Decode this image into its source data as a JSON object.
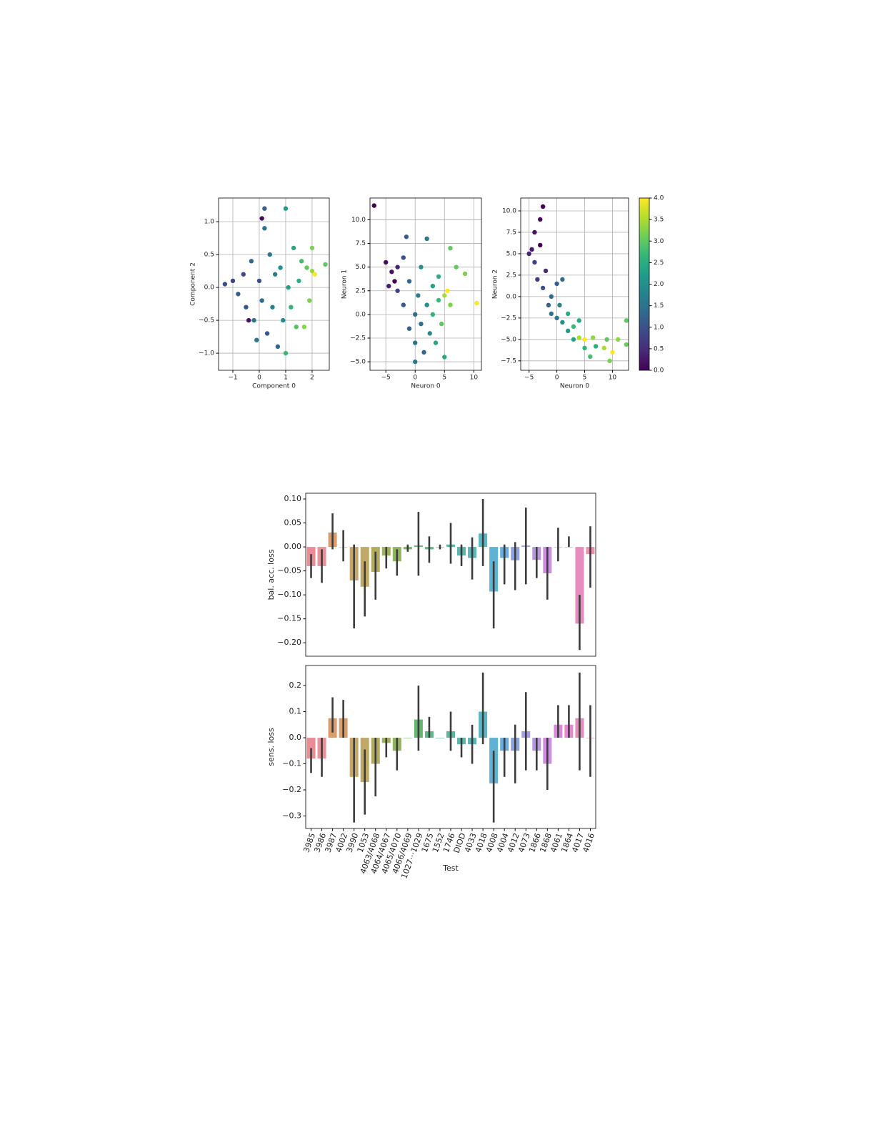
{
  "chart_data": [
    {
      "type": "scatter",
      "xlabel": "Component 0",
      "ylabel": "Component 2",
      "colormap": "viridis",
      "clim": [
        0,
        4
      ],
      "grid": true,
      "x": [
        -1.3,
        -1.0,
        -0.8,
        -0.6,
        -0.5,
        -0.3,
        -0.2,
        0,
        0.1,
        0.2,
        0.2,
        0.3,
        0.4,
        0.5,
        0.6,
        0.7,
        0.8,
        0.9,
        1.0,
        1.0,
        1.1,
        1.2,
        1.3,
        1.4,
        1.5,
        1.6,
        1.8,
        2.0,
        2.0,
        2.1,
        2.5,
        1.9,
        -0.4,
        0.1,
        1.7,
        -0.1
      ],
      "y": [
        0.05,
        0.1,
        -0.1,
        0.2,
        -0.3,
        0.4,
        -0.5,
        0.1,
        -0.2,
        1.2,
        0.9,
        -0.7,
        0.5,
        -0.3,
        0.2,
        -0.9,
        0.3,
        -0.5,
        1.2,
        -1.0,
        0.0,
        -0.3,
        0.6,
        -0.6,
        0.1,
        0.4,
        0.3,
        0.6,
        0.25,
        0.2,
        0.35,
        -0.2,
        -0.5,
        1.05,
        -0.6,
        -0.8
      ],
      "c": [
        1,
        0.8,
        1.2,
        0.9,
        1.1,
        1.3,
        1.5,
        1.0,
        1.4,
        1.2,
        1.5,
        1.1,
        1.6,
        1.8,
        1.7,
        1.3,
        2.0,
        1.9,
        2.2,
        2.7,
        2.3,
        2.6,
        2.4,
        2.9,
        2.5,
        2.8,
        3.0,
        3.2,
        3.4,
        4.0,
        3.0,
        3.2,
        0.2,
        0.1,
        3.3,
        1.6
      ],
      "xlim": [
        -1.54,
        2.65
      ],
      "ylim": [
        -1.26,
        1.36
      ],
      "xticks": [
        {
          "value": -1,
          "label": "−1"
        },
        0,
        1,
        2
      ],
      "yticks": [
        {
          "value": -1,
          "label": "−1.0"
        },
        {
          "value": -0.5,
          "label": "−0.5"
        },
        {
          "value": 0,
          "label": "0.0"
        },
        0.5,
        {
          "value": 1,
          "label": "1.0"
        }
      ]
    },
    {
      "type": "scatter",
      "xlabel": "Neuron 0",
      "ylabel": "Neuron 1",
      "colormap": "viridis",
      "clim": [
        0,
        4
      ],
      "grid": true,
      "x": [
        -7,
        -5,
        -4,
        -4.5,
        -3,
        -3,
        -2,
        -1.5,
        -2,
        -1,
        -1,
        0,
        0,
        0,
        0.5,
        1,
        1,
        1.5,
        2,
        2,
        2.5,
        3,
        3,
        3.5,
        4,
        4,
        4.5,
        5,
        5,
        5.5,
        6,
        6,
        7,
        8.5,
        10.5,
        -3.5
      ],
      "y": [
        11.5,
        5.5,
        4.5,
        3,
        5,
        2.5,
        6,
        8.2,
        1,
        3.5,
        -1.5,
        0,
        -3,
        -5,
        2,
        -1,
        5,
        -4,
        1,
        8,
        -2,
        3,
        0,
        -3,
        1.5,
        4,
        -1,
        2,
        -4.5,
        2.5,
        7,
        1,
        5,
        4.3,
        1.2,
        3.5
      ],
      "c": [
        0,
        0.1,
        0.2,
        0.3,
        0.4,
        0.8,
        1.0,
        1.2,
        1.1,
        1.3,
        1.2,
        1.4,
        1.5,
        1.6,
        1.7,
        1.5,
        2.0,
        1.3,
        2.0,
        1.6,
        1.9,
        2.3,
        2.6,
        2.4,
        2.7,
        2.5,
        3.0,
        3.5,
        2.4,
        4.0,
        3.0,
        3.2,
        3.0,
        3.2,
        4.0,
        0
      ],
      "xlim": [
        -7.7,
        11.3
      ],
      "ylim": [
        -5.9,
        12.3
      ],
      "xticks": [
        {
          "value": -5,
          "label": "−5"
        },
        0,
        5,
        10
      ],
      "yticks": [
        {
          "value": -5,
          "label": "−5.0"
        },
        {
          "value": -2.5,
          "label": "−2.5"
        },
        {
          "value": 0,
          "label": "0.0"
        },
        2.5,
        {
          "value": 5,
          "label": "5.0"
        },
        7.5,
        {
          "value": 10,
          "label": "10.0"
        }
      ]
    },
    {
      "type": "scatter",
      "xlabel": "Neuron 0",
      "ylabel": "Neuron 2",
      "colormap": "viridis",
      "clim": [
        0,
        4
      ],
      "grid": true,
      "x": [
        -2.5,
        -3,
        -4,
        -5,
        -4,
        -3,
        -3.5,
        -2.5,
        -2,
        -1.5,
        -1,
        -1,
        0,
        0,
        0.5,
        1,
        1,
        2,
        2,
        3,
        3,
        4,
        4,
        5,
        5,
        6,
        6.5,
        7,
        8.5,
        9,
        9.5,
        10,
        11,
        12.5,
        12.5,
        -4.5
      ],
      "y": [
        10.5,
        9,
        7.5,
        5,
        4,
        6,
        2,
        1,
        3,
        -1,
        0,
        -2,
        1.5,
        -2.5,
        -1,
        -3,
        2,
        -4,
        -2,
        -3.5,
        -5,
        -4.8,
        -2.8,
        -6,
        -5,
        -7,
        -4.8,
        -5.8,
        -6,
        -5,
        -7.5,
        -6.5,
        -5,
        -2.8,
        -5.6,
        5.5
      ],
      "c": [
        0,
        0.1,
        0.2,
        0.4,
        0.8,
        0,
        0.6,
        1.0,
        0.5,
        1.2,
        1.4,
        1.5,
        1.2,
        1.6,
        1.8,
        2.0,
        1.4,
        2.2,
        2.5,
        2.7,
        2.3,
        3.5,
        2.4,
        2.6,
        4.0,
        2.8,
        3.3,
        2.5,
        3.5,
        3.0,
        3.2,
        4.0,
        3.3,
        3.0,
        3.1,
        0.3
      ],
      "xlim": [
        -6.5,
        12.9
      ],
      "ylim": [
        -8.6,
        11.5
      ],
      "xticks": [
        {
          "value": -5,
          "label": "−5"
        },
        0,
        5,
        10
      ],
      "yticks": [
        {
          "value": -7.5,
          "label": "−7.5"
        },
        {
          "value": -5,
          "label": "−5.0"
        },
        {
          "value": -2.5,
          "label": "−2.5"
        },
        {
          "value": 0,
          "label": "0.0"
        },
        2.5,
        {
          "value": 5,
          "label": "5.0"
        },
        7.5,
        {
          "value": 10,
          "label": "10.0"
        }
      ],
      "cticks": [
        {
          "value": 0,
          "label": "0.0"
        },
        0.5,
        {
          "value": 1,
          "label": "1.0"
        },
        1.5,
        {
          "value": 2,
          "label": "2.0"
        },
        2.5,
        {
          "value": 3,
          "label": "3.0"
        },
        3.5,
        {
          "value": 4,
          "label": "4.0"
        }
      ]
    },
    {
      "type": "bar",
      "ylabel": "bal. acc. loss",
      "values": [
        -0.04,
        -0.04,
        0.03,
        0.0,
        -0.07,
        -0.083,
        -0.052,
        -0.018,
        -0.03,
        -0.005,
        0.003,
        -0.005,
        0.0,
        0.005,
        -0.018,
        -0.023,
        0.028,
        -0.093,
        -0.023,
        -0.028,
        0.003,
        -0.027,
        -0.055,
        0.0,
        0.0,
        -0.16,
        -0.015
      ],
      "ci_low": [
        -0.065,
        -0.075,
        -0.005,
        -0.03,
        -0.17,
        -0.145,
        -0.11,
        -0.045,
        -0.06,
        -0.01,
        -0.06,
        -0.033,
        -0.005,
        -0.035,
        -0.04,
        -0.068,
        -0.04,
        -0.17,
        -0.078,
        -0.09,
        -0.078,
        -0.065,
        -0.11,
        -0.03,
        0.0,
        -0.215,
        -0.085
      ],
      "ci_high": [
        -0.015,
        -0.005,
        0.07,
        0.035,
        0.005,
        -0.03,
        -0.01,
        0.0,
        -0.005,
        0.005,
        0.073,
        0.022,
        0.005,
        0.05,
        0.005,
        0.02,
        0.1,
        -0.03,
        0.005,
        0.01,
        0.082,
        0.0,
        0.0,
        0.04,
        0.022,
        -0.1,
        0.043
      ],
      "colors": [
        "#e8808a",
        "#e5868f",
        "#d9925a",
        "#d4945c",
        "#c09d55",
        "#b9a056",
        "#aaa249",
        "#97a74d",
        "#86ac4c",
        "#6daf4f",
        "#52b05f",
        "#4bb07a",
        "#49b08a",
        "#48b097",
        "#47afa3",
        "#48aeb0",
        "#4aadbe",
        "#4eaacf",
        "#5aa4dd",
        "#7f9ae0",
        "#9b92e0",
        "#b08ae0",
        "#c582de",
        "#d67bd8",
        "#e07acb",
        "#e47fb7",
        "#e684a3"
      ],
      "ylim": [
        -0.228,
        0.112
      ],
      "yticks": [
        {
          "value": -0.2,
          "label": "−0.20"
        },
        {
          "value": -0.15,
          "label": "−0.15"
        },
        {
          "value": -0.1,
          "label": "−0.10"
        },
        {
          "value": -0.05,
          "label": "−0.05"
        },
        {
          "value": 0,
          "label": "0.00"
        },
        0.05,
        {
          "value": 0.1,
          "label": "0.10"
        }
      ]
    },
    {
      "type": "bar",
      "ylabel": "sens. loss",
      "xlabel": "Test",
      "categories": [
        "3985",
        "3986",
        "3987",
        "4002",
        "3990",
        "1053",
        "4063/4068",
        "4064/4067",
        "4065/4070",
        "4066/4069",
        "1027⋯1029",
        "1675",
        "1552",
        "1746",
        "DIOD",
        "4033",
        "4018",
        "4008",
        "4004",
        "4012",
        "4073",
        "1866",
        "1868",
        "4061",
        "1864",
        "4017",
        "4016"
      ],
      "values": [
        -0.08,
        -0.08,
        0.075,
        0.075,
        -0.15,
        -0.17,
        -0.1,
        -0.02,
        -0.05,
        0,
        0.07,
        0.025,
        0,
        0.025,
        -0.025,
        -0.025,
        0.1,
        -0.175,
        -0.05,
        -0.05,
        0.025,
        -0.05,
        -0.1,
        0.05,
        0.05,
        0.075,
        0
      ],
      "ci_low": [
        -0.135,
        -0.15,
        0.02,
        0.0,
        -0.325,
        -0.295,
        -0.225,
        -0.075,
        -0.125,
        0,
        -0.05,
        0.0,
        0,
        -0.05,
        -0.075,
        -0.1,
        -0.025,
        -0.325,
        -0.15,
        -0.175,
        -0.125,
        -0.125,
        -0.2,
        0,
        0,
        -0.125,
        -0.15
      ],
      "ci_high": [
        -0.04,
        0,
        0.155,
        0.145,
        0.0,
        -0.045,
        0.0,
        0.0,
        0.0,
        0,
        0.2,
        0.08,
        0,
        0.1,
        0,
        0.05,
        0.25,
        -0.05,
        0.0,
        0.05,
        0.175,
        0,
        0,
        0.125,
        0.125,
        0.25,
        0.125
      ],
      "colors": [
        "#e8808a",
        "#e5868f",
        "#d9925a",
        "#d4945c",
        "#c09d55",
        "#b9a056",
        "#aaa249",
        "#97a74d",
        "#86ac4c",
        "#6daf4f",
        "#52b05f",
        "#4bb07a",
        "#49b08a",
        "#48b097",
        "#47afa3",
        "#48aeb0",
        "#4aadbe",
        "#4eaacf",
        "#5aa4dd",
        "#7f9ae0",
        "#9b92e0",
        "#b08ae0",
        "#c582de",
        "#d67bd8",
        "#e07acb",
        "#e47fb7",
        "#e684a3"
      ],
      "ylim": [
        -0.348,
        0.277
      ],
      "yticks": [
        {
          "value": -0.3,
          "label": "−0.3"
        },
        {
          "value": -0.2,
          "label": "−0.2"
        },
        {
          "value": -0.1,
          "label": "−0.1"
        },
        {
          "value": 0,
          "label": "0.0"
        },
        0.1,
        0.2
      ]
    }
  ]
}
